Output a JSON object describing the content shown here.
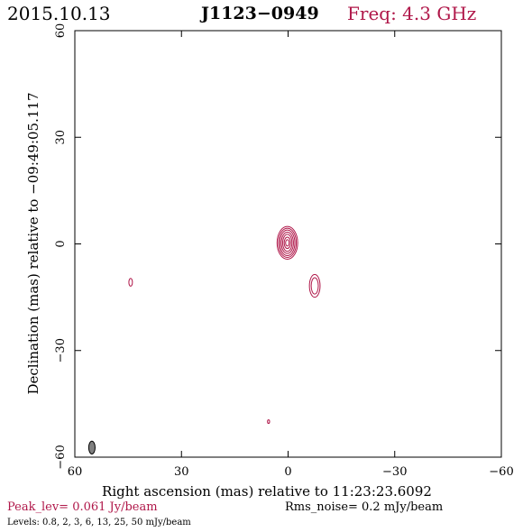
{
  "header": {
    "date": "2015.10.13",
    "source": "J1123−0949",
    "frequency": "Freq: 4.3 GHz"
  },
  "colors": {
    "contour": "#b0184a",
    "beam": "#808080",
    "axes": "#000000"
  },
  "chart_data": {
    "type": "contour",
    "xlabel": "Right ascension (mas) relative to 11:23:23.6092",
    "ylabel": "Declination (mas) relative to −09:49:05.117",
    "xlim": [
      60,
      -60
    ],
    "ylim": [
      -60,
      60
    ],
    "xticks": [
      60,
      30,
      0,
      -30,
      -60
    ],
    "yticks": [
      -60,
      -30,
      0,
      30,
      60
    ],
    "xtick_labels": [
      "60",
      "30",
      "0",
      "−30",
      "−60"
    ],
    "ytick_labels": [
      "−60",
      "−30",
      "0",
      "30",
      "60"
    ],
    "contour_levels_mJy": [
      0.8,
      2,
      3,
      6,
      13,
      25,
      50
    ],
    "peak_level_Jy_per_beam": 0.061,
    "rms_noise_mJy_per_beam": 0.2,
    "components": [
      {
        "ra": 0.2,
        "dec": 0.3,
        "contours": [
          {
            "ra_halfwidth": 2.9,
            "dec_halfwidth": 4.6
          },
          {
            "ra_halfwidth": 2.5,
            "dec_halfwidth": 4.1
          },
          {
            "ra_halfwidth": 2.1,
            "dec_halfwidth": 3.6
          },
          {
            "ra_halfwidth": 1.7,
            "dec_halfwidth": 3.0
          },
          {
            "ra_halfwidth": 1.3,
            "dec_halfwidth": 2.4
          },
          {
            "ra_halfwidth": 0.9,
            "dec_halfwidth": 1.6
          },
          {
            "ra_halfwidth": 0.5,
            "dec_halfwidth": 0.9
          }
        ]
      },
      {
        "ra": -7.5,
        "dec": -11.8,
        "contours": [
          {
            "ra_halfwidth": 1.5,
            "dec_halfwidth": 3.2
          },
          {
            "ra_halfwidth": 1.0,
            "dec_halfwidth": 2.3
          }
        ]
      },
      {
        "ra": 44.3,
        "dec": -10.8,
        "contours": [
          {
            "ra_halfwidth": 0.5,
            "dec_halfwidth": 1.1
          }
        ]
      },
      {
        "ra": 5.5,
        "dec": -50.0,
        "contours": [
          {
            "ra_halfwidth": 0.3,
            "dec_halfwidth": 0.5
          }
        ]
      }
    ],
    "beam": {
      "ra": 55.2,
      "dec": -57.3,
      "ra_halfwidth": 0.9,
      "dec_halfwidth": 1.8
    }
  },
  "footer": {
    "peak": "Peak_lev=  0.061 Jy/beam",
    "rms": "Rms_noise=   0.2 mJy/beam",
    "levels": "Levels: 0.8,    2,    3,    6,   13,   25,   50  mJy/beam"
  }
}
